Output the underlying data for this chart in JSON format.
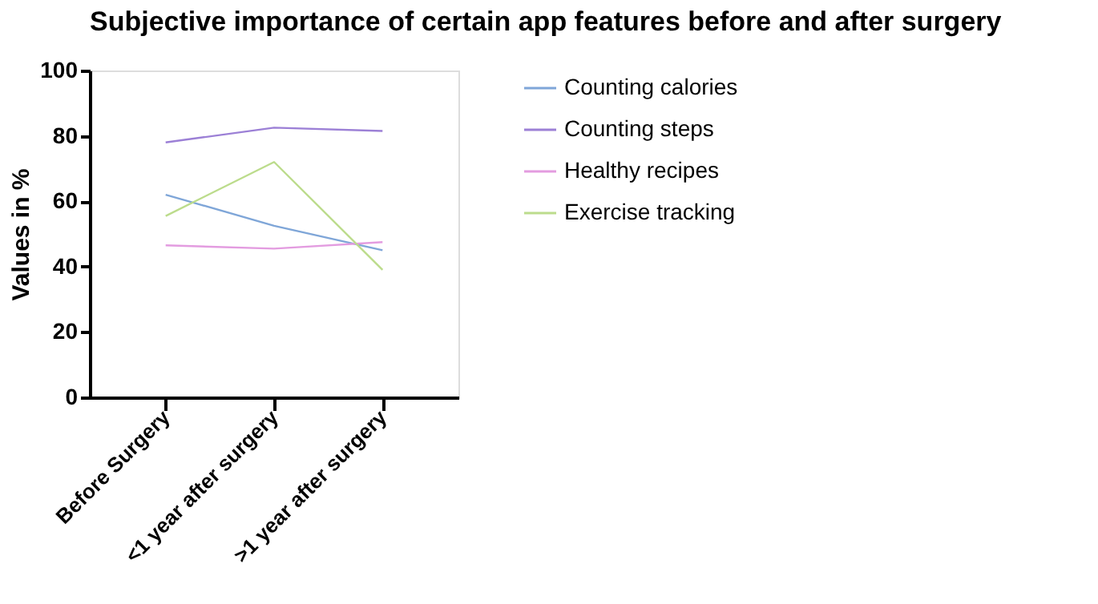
{
  "chart_data": {
    "type": "line",
    "title": "Subjective importance of certain app features before and after surgery",
    "ylabel": "Values in %",
    "categories": [
      "Before Surgery",
      "<1 year after surgery",
      ">1 year after surgery"
    ],
    "series": [
      {
        "name": "Counting calories",
        "color": "#7fa6d8",
        "values": [
          62,
          52.5,
          45
        ]
      },
      {
        "name": "Counting steps",
        "color": "#9c80d6",
        "values": [
          78,
          82.5,
          81.5
        ]
      },
      {
        "name": "Healthy recipes",
        "color": "#e39ce0",
        "values": [
          46.5,
          45.5,
          47.5
        ]
      },
      {
        "name": "Exercise tracking",
        "color": "#bcdc8c",
        "values": [
          55.5,
          72,
          39
        ]
      }
    ],
    "ylim": [
      0,
      100
    ],
    "yticks": [
      0,
      20,
      40,
      60,
      80,
      100
    ],
    "grid": false,
    "legend": "right",
    "marker": "none",
    "line_style": "solid"
  }
}
